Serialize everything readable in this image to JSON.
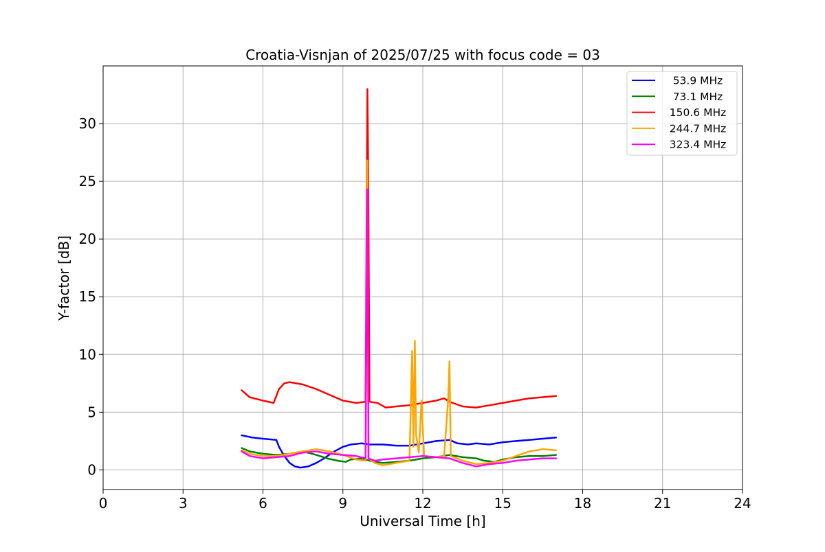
{
  "chart_data": {
    "type": "line",
    "title": "Croatia-Visnjan of 2025/07/25 with focus code = 03",
    "xlabel": "Universal Time [h]",
    "ylabel": "Y-factor [dB]",
    "xlim": [
      0,
      24
    ],
    "ylim": [
      -1.7,
      35
    ],
    "xticks": [
      0,
      3,
      6,
      9,
      12,
      15,
      18,
      21,
      24
    ],
    "yticks": [
      0,
      5,
      10,
      15,
      20,
      25,
      30
    ],
    "grid": true,
    "legend_position": "top-right",
    "series": [
      {
        "name": "53.9 MHz",
        "color": "#0000ff",
        "points": [
          [
            5.2,
            3.0
          ],
          [
            5.6,
            2.8
          ],
          [
            6.0,
            2.7
          ],
          [
            6.5,
            2.6
          ],
          [
            6.6,
            2.0
          ],
          [
            6.8,
            1.2
          ],
          [
            7.0,
            0.6
          ],
          [
            7.2,
            0.3
          ],
          [
            7.4,
            0.2
          ],
          [
            7.7,
            0.3
          ],
          [
            8.0,
            0.6
          ],
          [
            8.3,
            1.0
          ],
          [
            8.6,
            1.5
          ],
          [
            9.0,
            2.0
          ],
          [
            9.3,
            2.2
          ],
          [
            9.7,
            2.3
          ],
          [
            10.0,
            2.2
          ],
          [
            10.5,
            2.2
          ],
          [
            11.0,
            2.1
          ],
          [
            11.5,
            2.1
          ],
          [
            12.0,
            2.3
          ],
          [
            12.5,
            2.5
          ],
          [
            13.0,
            2.6
          ],
          [
            13.3,
            2.3
          ],
          [
            13.7,
            2.2
          ],
          [
            14.0,
            2.3
          ],
          [
            14.5,
            2.2
          ],
          [
            15.0,
            2.4
          ],
          [
            15.5,
            2.5
          ],
          [
            16.0,
            2.6
          ],
          [
            16.5,
            2.7
          ],
          [
            17.0,
            2.8
          ]
        ]
      },
      {
        "name": "73.1 MHz",
        "color": "#008000",
        "points": [
          [
            5.2,
            1.9
          ],
          [
            5.5,
            1.6
          ],
          [
            6.0,
            1.4
          ],
          [
            6.5,
            1.3
          ],
          [
            7.0,
            1.4
          ],
          [
            7.5,
            1.6
          ],
          [
            8.0,
            1.3
          ],
          [
            8.4,
            1.0
          ],
          [
            8.8,
            0.8
          ],
          [
            9.1,
            0.7
          ],
          [
            9.3,
            0.9
          ],
          [
            9.7,
            1.0
          ],
          [
            10.0,
            0.8
          ],
          [
            10.5,
            0.6
          ],
          [
            11.0,
            0.7
          ],
          [
            11.5,
            0.8
          ],
          [
            12.0,
            1.0
          ],
          [
            12.5,
            1.1
          ],
          [
            13.0,
            1.3
          ],
          [
            13.5,
            1.1
          ],
          [
            14.0,
            1.0
          ],
          [
            14.3,
            0.8
          ],
          [
            14.7,
            0.7
          ],
          [
            15.0,
            0.9
          ],
          [
            15.5,
            1.1
          ],
          [
            16.0,
            1.2
          ],
          [
            16.5,
            1.2
          ],
          [
            17.0,
            1.3
          ]
        ]
      },
      {
        "name": "150.6 MHz",
        "color": "#ff0000",
        "points": [
          [
            5.2,
            6.9
          ],
          [
            5.5,
            6.3
          ],
          [
            6.0,
            6.0
          ],
          [
            6.4,
            5.8
          ],
          [
            6.6,
            7.0
          ],
          [
            6.8,
            7.5
          ],
          [
            7.0,
            7.6
          ],
          [
            7.5,
            7.4
          ],
          [
            8.0,
            7.0
          ],
          [
            8.5,
            6.5
          ],
          [
            9.0,
            6.0
          ],
          [
            9.5,
            5.8
          ],
          [
            9.85,
            5.9
          ],
          [
            9.92,
            33.0
          ],
          [
            9.95,
            26.0
          ],
          [
            10.0,
            5.9
          ],
          [
            10.3,
            5.8
          ],
          [
            10.6,
            5.4
          ],
          [
            11.0,
            5.5
          ],
          [
            11.5,
            5.6
          ],
          [
            12.0,
            5.8
          ],
          [
            12.5,
            6.0
          ],
          [
            12.8,
            6.2
          ],
          [
            13.0,
            5.9
          ],
          [
            13.5,
            5.5
          ],
          [
            14.0,
            5.4
          ],
          [
            14.5,
            5.6
          ],
          [
            15.0,
            5.8
          ],
          [
            15.5,
            6.0
          ],
          [
            16.0,
            6.2
          ],
          [
            16.5,
            6.3
          ],
          [
            17.0,
            6.4
          ]
        ]
      },
      {
        "name": "244.7 MHz",
        "color": "#ffa500",
        "points": [
          [
            5.2,
            1.7
          ],
          [
            5.5,
            1.4
          ],
          [
            6.0,
            1.2
          ],
          [
            6.5,
            1.2
          ],
          [
            7.0,
            1.4
          ],
          [
            7.5,
            1.6
          ],
          [
            8.0,
            1.8
          ],
          [
            8.5,
            1.6
          ],
          [
            9.0,
            1.3
          ],
          [
            9.5,
            0.9
          ],
          [
            9.85,
            0.8
          ],
          [
            9.92,
            26.8
          ],
          [
            9.96,
            1.0
          ],
          [
            10.2,
            0.6
          ],
          [
            10.5,
            0.4
          ],
          [
            11.0,
            0.6
          ],
          [
            11.5,
            0.8
          ],
          [
            11.6,
            10.3
          ],
          [
            11.65,
            2.0
          ],
          [
            11.7,
            11.2
          ],
          [
            11.75,
            3.0
          ],
          [
            11.85,
            1.5
          ],
          [
            11.95,
            6.0
          ],
          [
            12.05,
            1.2
          ],
          [
            12.5,
            1.1
          ],
          [
            12.8,
            1.2
          ],
          [
            12.95,
            6.0
          ],
          [
            13.0,
            9.4
          ],
          [
            13.05,
            1.2
          ],
          [
            13.5,
            0.8
          ],
          [
            14.0,
            0.5
          ],
          [
            14.5,
            0.6
          ],
          [
            15.0,
            0.8
          ],
          [
            15.5,
            1.2
          ],
          [
            16.0,
            1.6
          ],
          [
            16.5,
            1.8
          ],
          [
            17.0,
            1.7
          ]
        ]
      },
      {
        "name": "323.4 MHz",
        "color": "#ff00ff",
        "points": [
          [
            5.2,
            1.6
          ],
          [
            5.5,
            1.2
          ],
          [
            6.0,
            1.0
          ],
          [
            6.5,
            1.1
          ],
          [
            7.0,
            1.2
          ],
          [
            7.5,
            1.5
          ],
          [
            8.0,
            1.6
          ],
          [
            8.5,
            1.4
          ],
          [
            9.0,
            1.3
          ],
          [
            9.5,
            1.2
          ],
          [
            9.85,
            1.0
          ],
          [
            9.92,
            24.3
          ],
          [
            9.96,
            1.0
          ],
          [
            10.2,
            0.8
          ],
          [
            10.5,
            0.9
          ],
          [
            11.0,
            1.0
          ],
          [
            11.5,
            1.1
          ],
          [
            12.0,
            1.2
          ],
          [
            12.5,
            1.1
          ],
          [
            13.0,
            1.0
          ],
          [
            13.5,
            0.6
          ],
          [
            14.0,
            0.3
          ],
          [
            14.5,
            0.5
          ],
          [
            15.0,
            0.6
          ],
          [
            15.5,
            0.8
          ],
          [
            16.0,
            0.9
          ],
          [
            16.5,
            1.0
          ],
          [
            17.0,
            1.0
          ]
        ]
      }
    ]
  }
}
